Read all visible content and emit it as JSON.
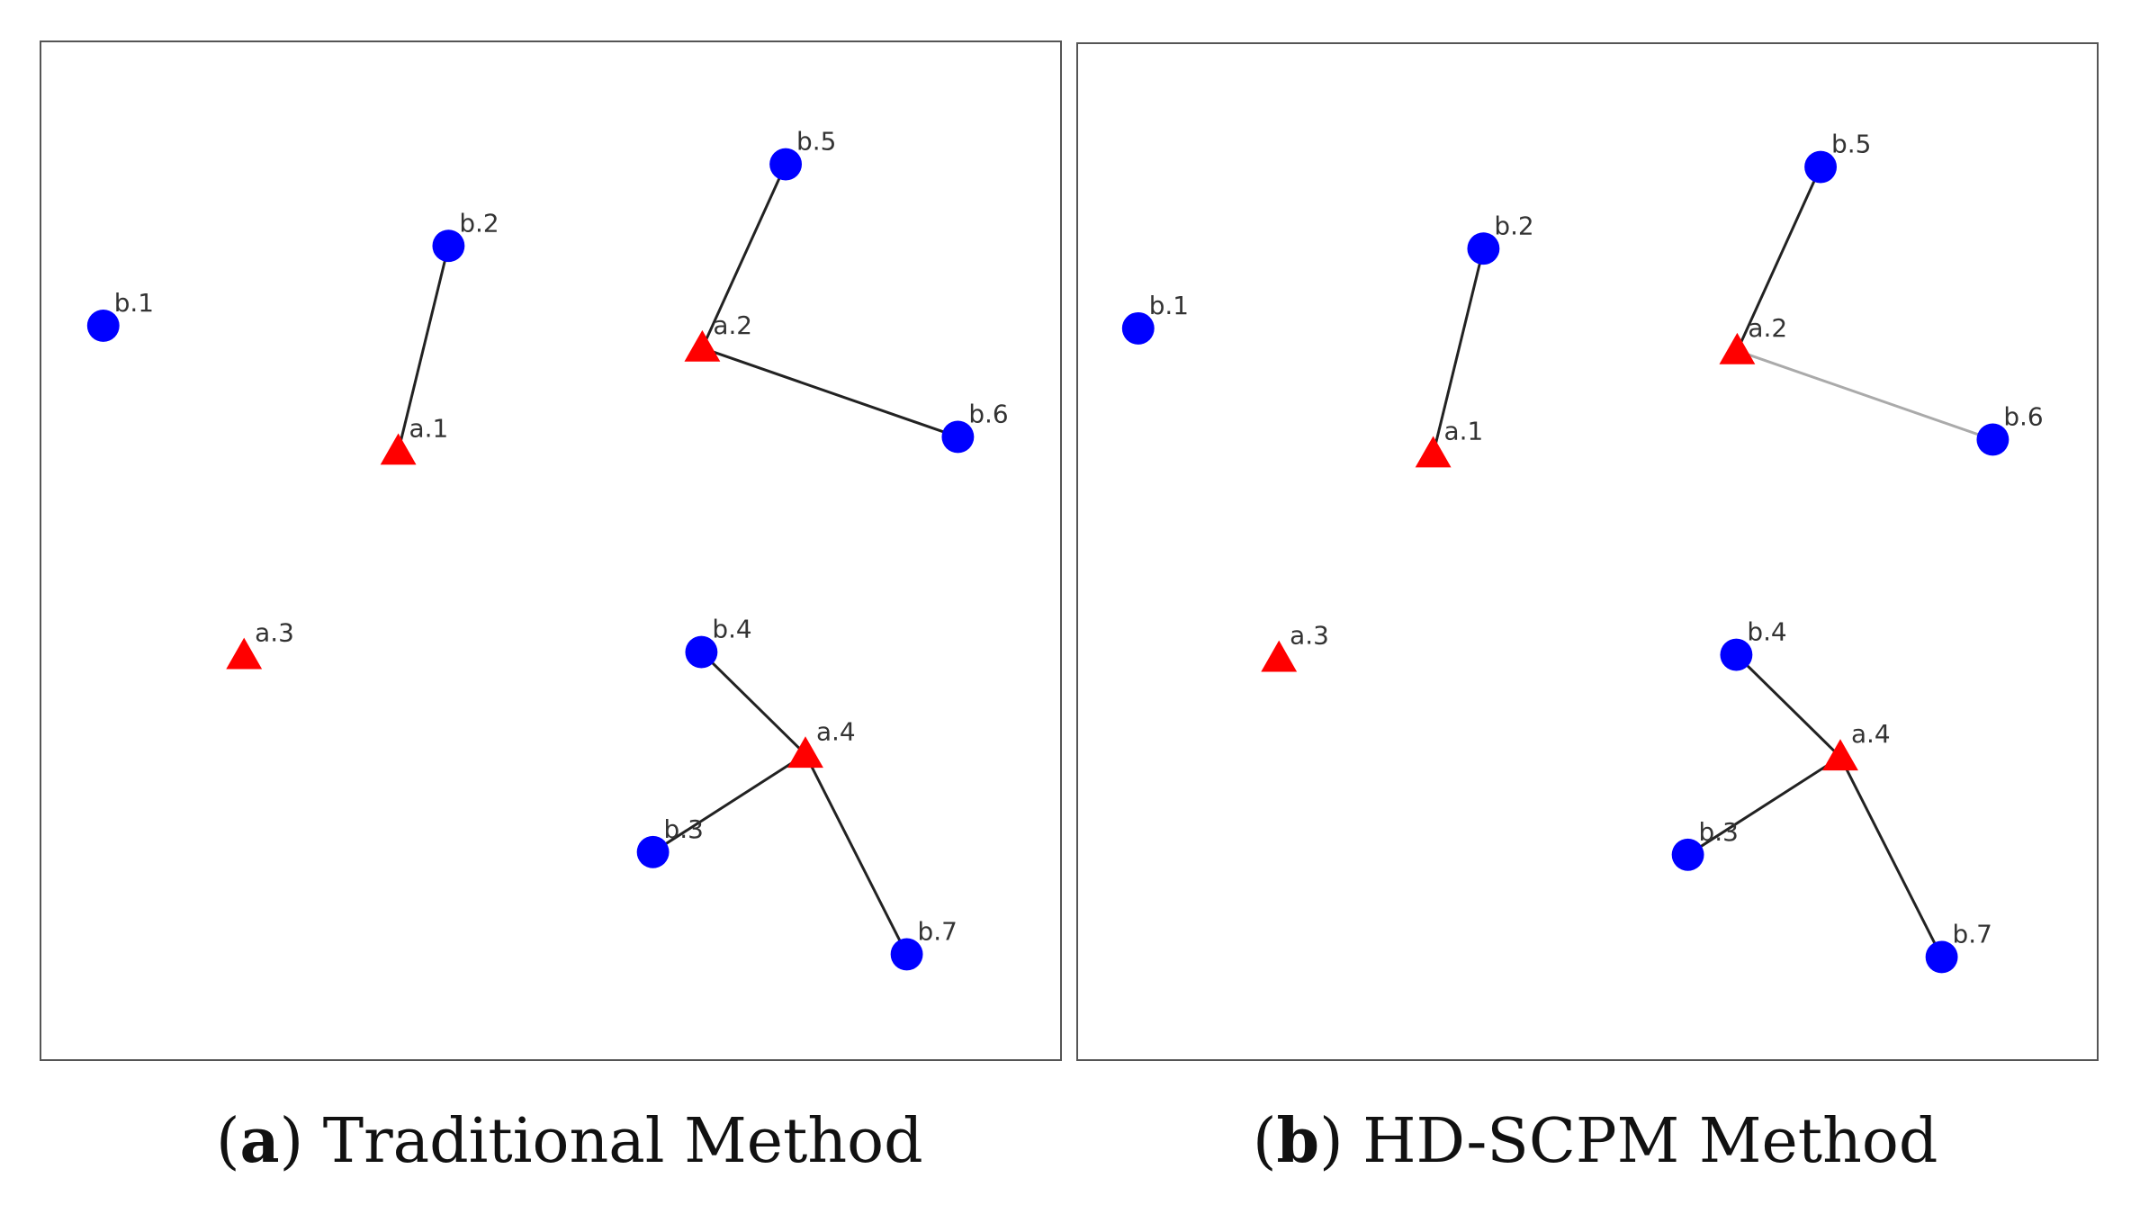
{
  "panels": [
    {
      "id": "a",
      "caption_letter": "a",
      "caption_text": "Traditional Method",
      "nodes": [
        {
          "label": "b.1",
          "kind": "b"
        },
        {
          "label": "b.2",
          "kind": "b"
        },
        {
          "label": "b.3",
          "kind": "b"
        },
        {
          "label": "b.4",
          "kind": "b"
        },
        {
          "label": "b.5",
          "kind": "b"
        },
        {
          "label": "b.6",
          "kind": "b"
        },
        {
          "label": "b.7",
          "kind": "b"
        },
        {
          "label": "a.1",
          "kind": "a"
        },
        {
          "label": "a.2",
          "kind": "a"
        },
        {
          "label": "a.3",
          "kind": "a"
        },
        {
          "label": "a.4",
          "kind": "a"
        }
      ],
      "edges": [
        {
          "from": "a.1",
          "to": "b.2",
          "style": "dark"
        },
        {
          "from": "a.2",
          "to": "b.5",
          "style": "dark"
        },
        {
          "from": "a.2",
          "to": "b.6",
          "style": "dark"
        },
        {
          "from": "a.4",
          "to": "b.4",
          "style": "dark"
        },
        {
          "from": "a.4",
          "to": "b.3",
          "style": "dark"
        },
        {
          "from": "a.4",
          "to": "b.7",
          "style": "dark"
        }
      ]
    },
    {
      "id": "b",
      "caption_letter": "b",
      "caption_text": "HD-SCPM Method",
      "nodes": [
        {
          "label": "b.1",
          "kind": "b"
        },
        {
          "label": "b.2",
          "kind": "b"
        },
        {
          "label": "b.3",
          "kind": "b"
        },
        {
          "label": "b.4",
          "kind": "b"
        },
        {
          "label": "b.5",
          "kind": "b"
        },
        {
          "label": "b.6",
          "kind": "b"
        },
        {
          "label": "b.7",
          "kind": "b"
        },
        {
          "label": "a.1",
          "kind": "a"
        },
        {
          "label": "a.2",
          "kind": "a"
        },
        {
          "label": "a.3",
          "kind": "a"
        },
        {
          "label": "a.4",
          "kind": "a"
        }
      ],
      "edges": [
        {
          "from": "a.1",
          "to": "b.2",
          "style": "dark"
        },
        {
          "from": "a.2",
          "to": "b.5",
          "style": "dark"
        },
        {
          "from": "a.2",
          "to": "b.6",
          "style": "light"
        },
        {
          "from": "a.4",
          "to": "b.4",
          "style": "dark"
        },
        {
          "from": "a.4",
          "to": "b.3",
          "style": "dark"
        },
        {
          "from": "a.4",
          "to": "b.7",
          "style": "dark"
        }
      ]
    }
  ],
  "colors": {
    "b_node": "#0000ff",
    "a_node": "#ff0000",
    "edge_dark": "#222222",
    "edge_light": "#aaaaaa"
  },
  "icons": {
    "b_node": "blue-circle-marker",
    "a_node": "red-triangle-marker"
  }
}
